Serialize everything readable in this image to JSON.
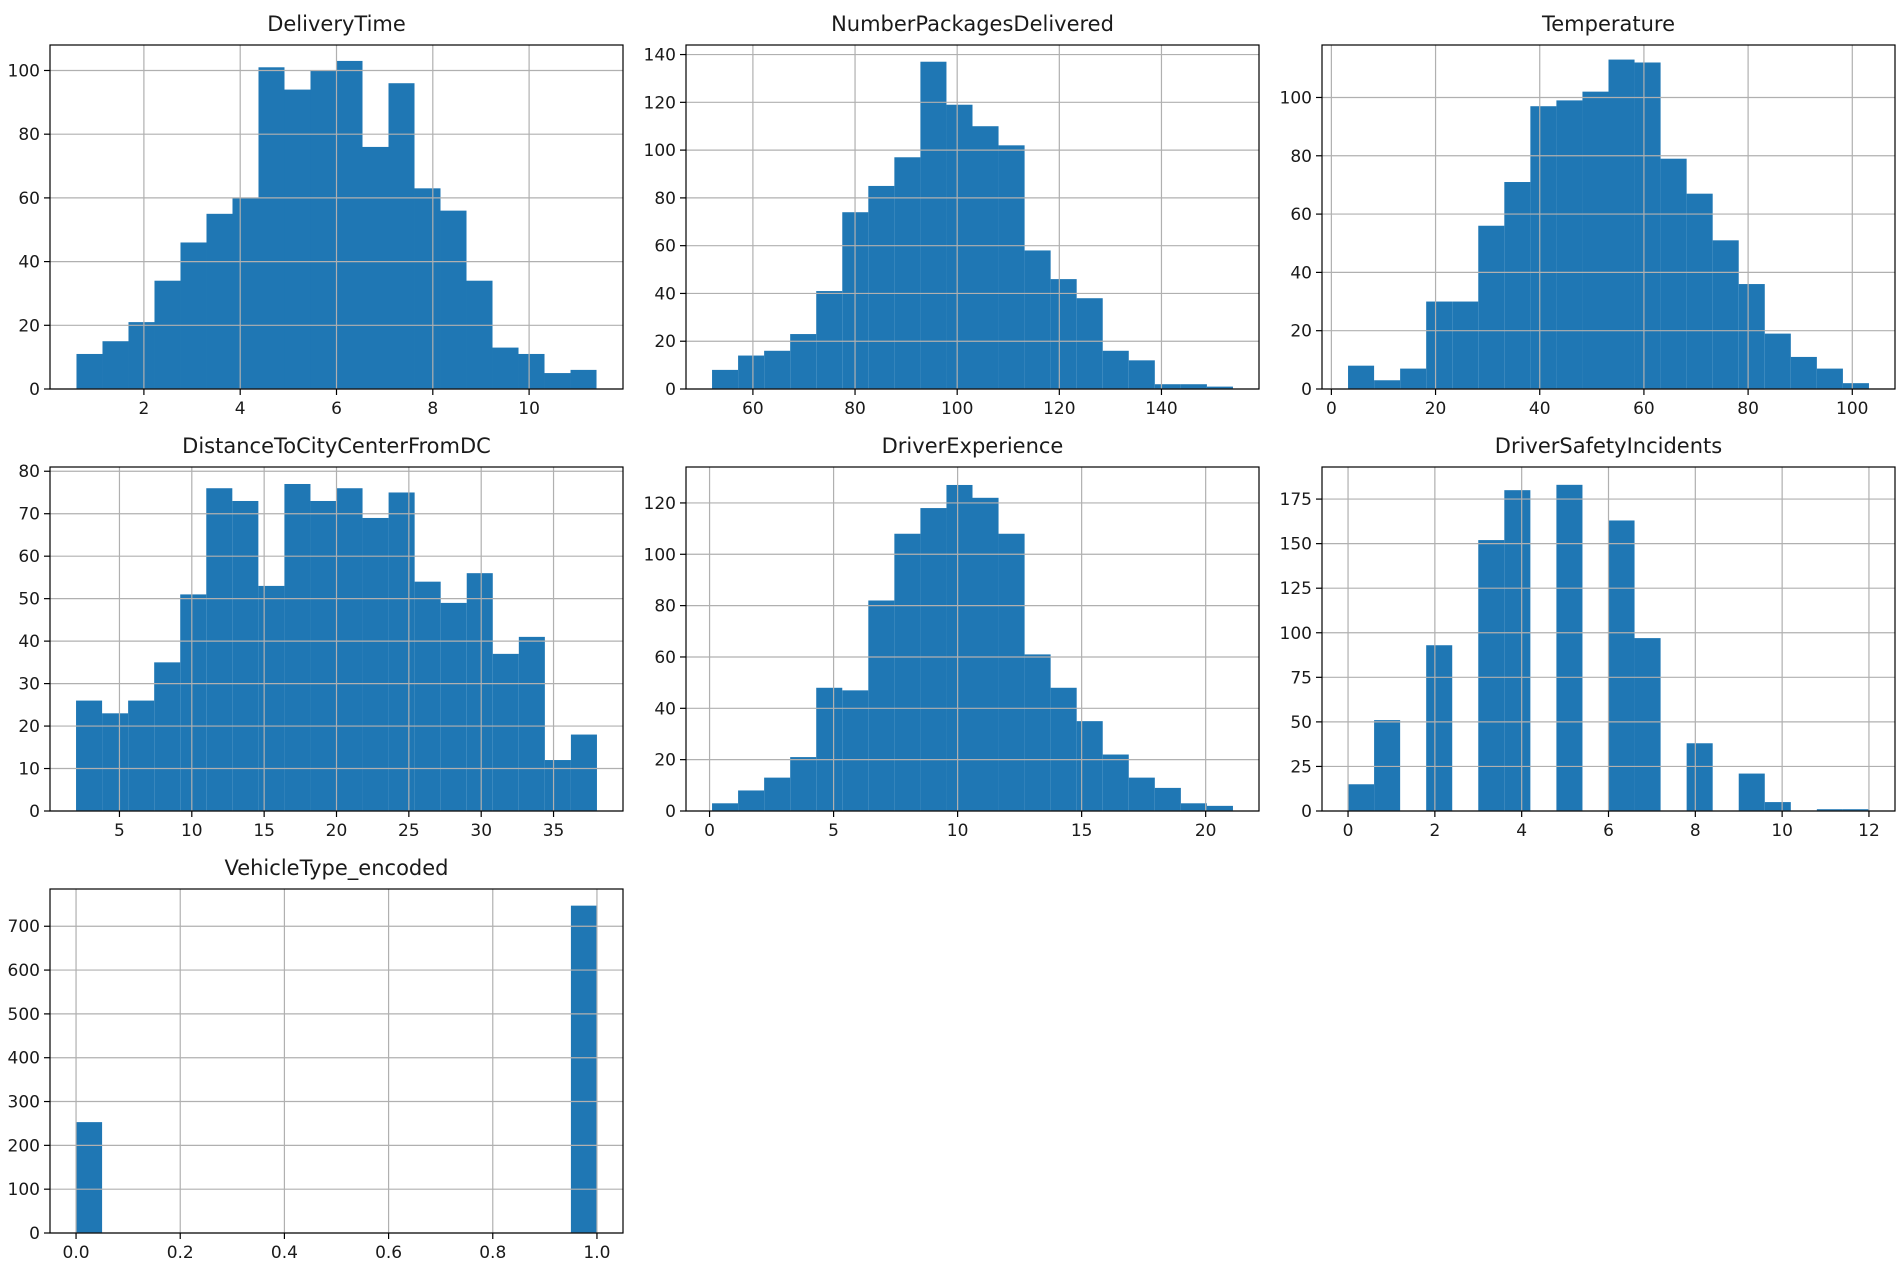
{
  "figure": {
    "background": "#ffffff",
    "bar_color": "#1f77b4",
    "grid_color": "#b0b0b0",
    "grid": true,
    "layout": "3x3 grid of histograms"
  },
  "chart_data": [
    {
      "type": "bar",
      "title": "DeliveryTime",
      "xlabel": "",
      "ylabel": "",
      "bin_edges": [
        0.6,
        1.14,
        1.68,
        2.22,
        2.76,
        3.3,
        3.84,
        4.38,
        4.92,
        5.46,
        6.0,
        6.54,
        7.08,
        7.62,
        8.16,
        8.7,
        9.24,
        9.78,
        10.32,
        10.86,
        11.4
      ],
      "values": [
        11,
        15,
        21,
        34,
        46,
        55,
        60,
        101,
        94,
        100,
        103,
        76,
        96,
        63,
        56,
        34,
        13,
        11,
        5,
        6
      ],
      "xlim": [
        0.05,
        11.95
      ],
      "ylim": [
        0,
        108
      ],
      "xticks": [
        2,
        4,
        6,
        8,
        10
      ],
      "xtick_labels": [
        "2",
        "4",
        "6",
        "8",
        "10"
      ],
      "yticks": [
        0,
        20,
        40,
        60,
        80,
        100
      ],
      "ytick_labels": [
        "0",
        "20",
        "40",
        "60",
        "80",
        "100"
      ]
    },
    {
      "type": "bar",
      "title": "NumberPackagesDelivered",
      "xlabel": "",
      "ylabel": "",
      "bin_edges": [
        52,
        57.1,
        62.2,
        67.3,
        72.4,
        77.5,
        82.6,
        87.7,
        92.8,
        97.9,
        103,
        108.1,
        113.2,
        118.3,
        123.4,
        128.5,
        133.6,
        138.7,
        143.8,
        148.9,
        154
      ],
      "values": [
        8,
        14,
        16,
        23,
        41,
        74,
        85,
        97,
        137,
        119,
        110,
        102,
        58,
        46,
        38,
        16,
        12,
        2,
        2,
        1
      ],
      "xlim": [
        46.9,
        159.1
      ],
      "ylim": [
        0,
        144
      ],
      "xticks": [
        60,
        80,
        100,
        120,
        140
      ],
      "xtick_labels": [
        "60",
        "80",
        "100",
        "120",
        "140"
      ],
      "yticks": [
        0,
        20,
        40,
        60,
        80,
        100,
        120,
        140
      ],
      "ytick_labels": [
        "0",
        "20",
        "40",
        "60",
        "80",
        "100",
        "120",
        "140"
      ]
    },
    {
      "type": "bar",
      "title": "Temperature",
      "xlabel": "",
      "ylabel": "",
      "bin_edges": [
        3.2,
        8.2,
        13.2,
        18.2,
        23.2,
        28.2,
        33.2,
        38.2,
        43.2,
        48.2,
        53.2,
        58.2,
        63.2,
        68.2,
        73.2,
        78.2,
        83.2,
        88.2,
        93.2,
        98.2,
        103.2
      ],
      "values": [
        8,
        3,
        7,
        30,
        30,
        56,
        71,
        97,
        99,
        102,
        113,
        112,
        79,
        67,
        51,
        36,
        19,
        11,
        7,
        2
      ],
      "xlim": [
        -1.8,
        108.2
      ],
      "ylim": [
        0,
        118
      ],
      "xticks": [
        0,
        20,
        40,
        60,
        80,
        100
      ],
      "xtick_labels": [
        "0",
        "20",
        "40",
        "60",
        "80",
        "100"
      ],
      "yticks": [
        0,
        20,
        40,
        60,
        80,
        100
      ],
      "ytick_labels": [
        "0",
        "20",
        "40",
        "60",
        "80",
        "100"
      ]
    },
    {
      "type": "bar",
      "title": "DistanceToCityCenterFromDC",
      "xlabel": "",
      "ylabel": "",
      "bin_edges": [
        2.0,
        3.8,
        5.6,
        7.4,
        9.2,
        11.0,
        12.8,
        14.6,
        16.4,
        18.2,
        20.0,
        21.8,
        23.6,
        25.4,
        27.2,
        29.0,
        30.8,
        32.6,
        34.4,
        36.2,
        38.0
      ],
      "values": [
        26,
        23,
        26,
        35,
        51,
        76,
        73,
        53,
        77,
        73,
        76,
        69,
        75,
        54,
        49,
        56,
        37,
        41,
        12,
        18
      ],
      "xlim": [
        0.2,
        39.8
      ],
      "ylim": [
        0,
        81
      ],
      "xticks": [
        5,
        10,
        15,
        20,
        25,
        30,
        35
      ],
      "xtick_labels": [
        "5",
        "10",
        "15",
        "20",
        "25",
        "30",
        "35"
      ],
      "yticks": [
        0,
        10,
        20,
        30,
        40,
        50,
        60,
        70,
        80
      ],
      "ytick_labels": [
        "0",
        "10",
        "20",
        "30",
        "40",
        "50",
        "60",
        "70",
        "80"
      ]
    },
    {
      "type": "bar",
      "title": "DriverExperience",
      "xlabel": "",
      "ylabel": "",
      "bin_edges": [
        0.1,
        1.15,
        2.2,
        3.25,
        4.3,
        5.35,
        6.4,
        7.45,
        8.5,
        9.55,
        10.6,
        11.65,
        12.7,
        13.75,
        14.8,
        15.85,
        16.9,
        17.95,
        19.0,
        20.05,
        21.1
      ],
      "values": [
        3,
        8,
        13,
        21,
        48,
        47,
        82,
        108,
        118,
        127,
        122,
        108,
        61,
        48,
        35,
        22,
        13,
        9,
        3,
        2
      ],
      "xlim": [
        -0.95,
        22.15
      ],
      "ylim": [
        0,
        134
      ],
      "xticks": [
        0,
        5,
        10,
        15,
        20
      ],
      "xtick_labels": [
        "0",
        "5",
        "10",
        "15",
        "20"
      ],
      "yticks": [
        0,
        20,
        40,
        60,
        80,
        100,
        120
      ],
      "ytick_labels": [
        "0",
        "20",
        "40",
        "60",
        "80",
        "100",
        "120"
      ]
    },
    {
      "type": "bar",
      "title": "DriverSafetyIncidents",
      "xlabel": "",
      "ylabel": "",
      "bin_edges": [
        0,
        0.6,
        1.2,
        1.8,
        2.4,
        3.0,
        3.6,
        4.2,
        4.8,
        5.4,
        6.0,
        6.6,
        7.2,
        7.8,
        8.4,
        9.0,
        9.6,
        10.2,
        10.8,
        11.4,
        12.0
      ],
      "values": [
        15,
        51,
        0,
        93,
        0,
        152,
        180,
        0,
        183,
        0,
        163,
        97,
        0,
        38,
        0,
        21,
        5,
        0,
        1,
        1
      ],
      "xlim": [
        -0.6,
        12.6
      ],
      "ylim": [
        0,
        193
      ],
      "xticks": [
        0,
        2,
        4,
        6,
        8,
        10,
        12
      ],
      "xtick_labels": [
        "0",
        "2",
        "4",
        "6",
        "8",
        "10",
        "12"
      ],
      "yticks": [
        0,
        25,
        50,
        75,
        100,
        125,
        150,
        175
      ],
      "ytick_labels": [
        "0",
        "25",
        "50",
        "75",
        "100",
        "125",
        "150",
        "175"
      ]
    },
    {
      "type": "bar",
      "title": "VehicleType_encoded",
      "xlabel": "",
      "ylabel": "",
      "bin_edges": [
        0,
        0.05,
        0.1,
        0.15,
        0.2,
        0.25,
        0.3,
        0.35,
        0.4,
        0.45,
        0.5,
        0.55,
        0.6,
        0.65,
        0.7,
        0.75,
        0.8,
        0.85,
        0.9,
        0.95,
        1.0
      ],
      "values": [
        253,
        0,
        0,
        0,
        0,
        0,
        0,
        0,
        0,
        0,
        0,
        0,
        0,
        0,
        0,
        0,
        0,
        0,
        0,
        747
      ],
      "xlim": [
        -0.05,
        1.05
      ],
      "ylim": [
        0,
        785
      ],
      "xticks": [
        0.0,
        0.2,
        0.4,
        0.6,
        0.8,
        1.0
      ],
      "xtick_labels": [
        "0.0",
        "0.2",
        "0.4",
        "0.6",
        "0.8",
        "1.0"
      ],
      "yticks": [
        0,
        100,
        200,
        300,
        400,
        500,
        600,
        700
      ],
      "ytick_labels": [
        "0",
        "100",
        "200",
        "300",
        "400",
        "500",
        "600",
        "700"
      ]
    }
  ]
}
